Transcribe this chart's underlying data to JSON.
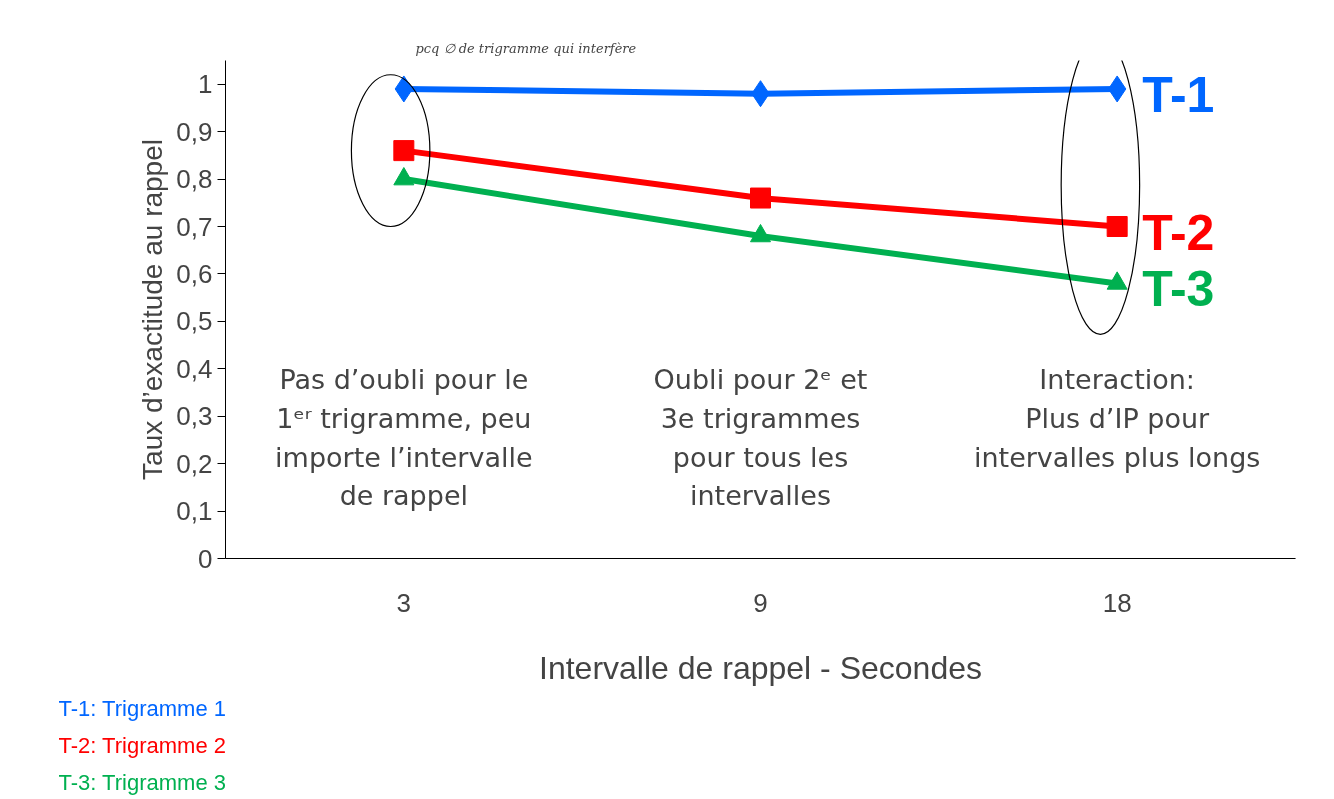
{
  "chart_data": {
    "type": "line",
    "ylabel": "Taux d’exactitude au rappel",
    "xlabel": "Intervalle de rappel - Secondes",
    "categories": [
      "3",
      "9",
      "18"
    ],
    "series": [
      {
        "name": "T-1",
        "color": "#0066ff",
        "marker": "diamond",
        "values": [
          0.99,
          0.98,
          0.99
        ]
      },
      {
        "name": "T-2",
        "color": "#ff0000",
        "marker": "square",
        "values": [
          0.86,
          0.76,
          0.7
        ]
      },
      {
        "name": "T-3",
        "color": "#00b050",
        "marker": "triangle",
        "values": [
          0.8,
          0.68,
          0.58
        ]
      }
    ],
    "ylim": [
      0,
      1.05
    ],
    "yticks": [
      {
        "value": 0,
        "label": "0"
      },
      {
        "value": 0.1,
        "label": "0,1"
      },
      {
        "value": 0.2,
        "label": "0,2"
      },
      {
        "value": 0.3,
        "label": "0,3"
      },
      {
        "value": 0.4,
        "label": "0,4"
      },
      {
        "value": 0.5,
        "label": "0,5"
      },
      {
        "value": 0.6,
        "label": "0,6"
      },
      {
        "value": 0.7,
        "label": "0,7"
      },
      {
        "value": 0.8,
        "label": "0,8"
      },
      {
        "value": 0.9,
        "label": "0,9"
      },
      {
        "value": 1,
        "label": "1"
      }
    ],
    "grid": false,
    "line_style": "solid",
    "annotations": [
      "T-1: Trigramme 1",
      "T-2: Trigramme 2",
      "T-3: Trigramme 3",
      "Pas d’oubli pour le\n1ᵉʳ trigramme, peu\nimporte l’intervalle\nde rappel",
      "Oubli pour 2ᵉ et\n3e trigrammes\npour tous les\nintervalles",
      "Interaction:\nPlus d’IP pour\nintervalles plus longs",
      "pcq ∅ de trigramme\nqui interfère"
    ]
  }
}
